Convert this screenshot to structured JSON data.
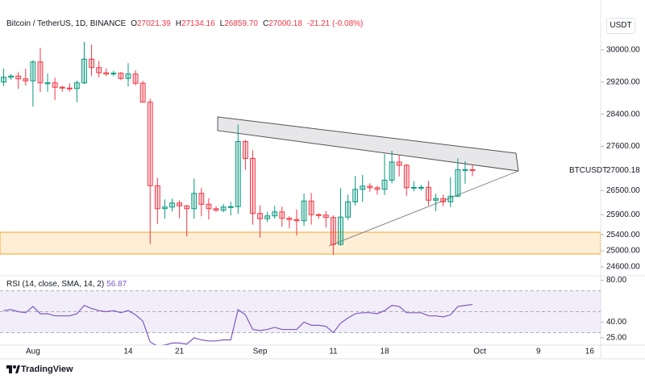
{
  "chart_data": {
    "type": "candlestick",
    "title": "Bitcoin / TetherUS, 1D, BINANCE",
    "currency": "USDT",
    "symbol": "BTCUSDT",
    "ohlc_labels": [
      "O",
      "H",
      "L",
      "C"
    ],
    "last_value_labels": [
      "27021.39",
      "27134.16",
      "26859.70",
      "27000.18"
    ],
    "change": "-21.21 (-0.08%)",
    "up_color": "#089981",
    "down_color": "#f23645",
    "grid": false,
    "categories": [
      null,
      null,
      null,
      null,
      "Aug",
      null,
      null,
      null,
      null,
      null,
      null,
      null,
      null,
      null,
      null,
      null,
      null,
      "14",
      null,
      null,
      null,
      null,
      null,
      null,
      "21",
      null,
      null,
      null,
      null,
      null,
      null,
      null,
      null,
      null,
      null,
      "Sep",
      null,
      null,
      null,
      null,
      null,
      null,
      null,
      null,
      null,
      "11",
      null,
      null,
      null,
      null,
      null,
      null,
      "18",
      null,
      null,
      null,
      null,
      null,
      null,
      null,
      null,
      null,
      null,
      null,
      null,
      "Oct",
      null,
      null,
      null,
      null,
      null,
      null,
      null,
      "9",
      null,
      null,
      null,
      null,
      null,
      null,
      "16",
      null
    ],
    "open": [
      29200,
      29320,
      29350,
      29280,
      29230,
      29700,
      29180,
      29180,
      29070,
      29050,
      29040,
      29180,
      29770,
      29560,
      29430,
      29400,
      29420,
      29290,
      29400,
      29170,
      28700,
      26620,
      26050,
      26090,
      26190,
      26120,
      26050,
      26430,
      26160,
      26050,
      26010,
      26090,
      26100,
      27720,
      27300,
      25930,
      25800,
      25870,
      25970,
      25810,
      25780,
      25750,
      26240,
      25900,
      25890,
      25830,
      25160,
      25840,
      26220,
      26530,
      26610,
      26570,
      26530,
      26760,
      27210,
      27130,
      26570,
      26580,
      26580,
      26260,
      26300,
      26220,
      26360,
      27020,
      27021.39,
      null,
      null,
      null,
      null,
      null,
      null,
      null,
      null,
      null,
      null,
      null,
      null,
      null,
      null,
      null,
      null,
      null
    ],
    "high": [
      29530,
      29400,
      29450,
      29530,
      29740,
      30050,
      29410,
      29310,
      29110,
      29170,
      29240,
      30200,
      30130,
      29720,
      29540,
      29480,
      29450,
      29670,
      29490,
      29230,
      28780,
      26820,
      26280,
      26300,
      26260,
      26140,
      26800,
      26570,
      26310,
      26110,
      26170,
      26220,
      28140,
      27760,
      27500,
      26130,
      25970,
      26120,
      26100,
      25860,
      26030,
      26430,
      26440,
      25940,
      25990,
      25880,
      26560,
      26400,
      26860,
      26890,
      26680,
      26620,
      27410,
      27490,
      27380,
      27160,
      26740,
      26640,
      26740,
      26420,
      26400,
      26830,
      27300,
      27230,
      27134.16,
      null,
      null,
      null,
      null,
      null,
      null,
      null,
      null,
      null,
      null,
      null,
      null,
      null,
      null,
      null,
      null,
      null
    ],
    "low": [
      29100,
      29260,
      29030,
      29110,
      28590,
      28950,
      28960,
      28750,
      28960,
      28960,
      28700,
      29150,
      29350,
      29320,
      29350,
      29350,
      29250,
      29090,
      29120,
      28700,
      25170,
      25670,
      25800,
      25980,
      25810,
      25360,
      25800,
      25860,
      25780,
      25970,
      25960,
      25880,
      25920,
      27020,
      25650,
      25330,
      25720,
      25800,
      25600,
      25560,
      25380,
      25620,
      25650,
      25800,
      25580,
      24900,
      25130,
      25770,
      26130,
      26220,
      26470,
      26400,
      26390,
      26680,
      26850,
      26370,
      26480,
      26500,
      26130,
      25990,
      26110,
      26090,
      26340,
      26670,
      26859.7,
      null,
      null,
      null,
      null,
      null,
      null,
      null,
      null,
      null,
      null,
      null,
      null,
      null,
      null,
      null,
      null,
      null
    ],
    "close": [
      29320,
      29350,
      29280,
      29230,
      29700,
      29180,
      29180,
      29070,
      29050,
      29040,
      29180,
      29770,
      29560,
      29430,
      29400,
      29420,
      29290,
      29400,
      29170,
      28700,
      26620,
      26050,
      26090,
      26190,
      26120,
      26050,
      26430,
      26160,
      26050,
      26010,
      26090,
      26100,
      27720,
      27300,
      25930,
      25800,
      25870,
      25970,
      25810,
      25780,
      25750,
      26240,
      25900,
      25890,
      25830,
      25160,
      25840,
      26220,
      26530,
      26610,
      26570,
      26530,
      26760,
      27210,
      27130,
      26570,
      26580,
      26580,
      26260,
      26300,
      26220,
      26360,
      27020,
      27021.39,
      27000.18,
      null,
      null,
      null,
      null,
      null,
      null,
      null,
      null,
      null,
      null,
      null,
      null,
      null,
      null,
      null,
      null,
      null
    ],
    "ylim": [
      24420,
      30840
    ],
    "yticks": [
      {
        "value": 30000,
        "label": "30000.00"
      },
      {
        "value": 29200,
        "label": "29200.00"
      },
      {
        "value": 28400,
        "label": "28400.00"
      },
      {
        "value": 27600,
        "label": "27600.00"
      },
      {
        "value": 26500,
        "label": "26500.00"
      },
      {
        "value": 25900,
        "label": "25900.00"
      },
      {
        "value": 25400,
        "label": "25400.00"
      },
      {
        "value": 25000,
        "label": "25000.00"
      },
      {
        "value": 24600,
        "label": "24600.00"
      }
    ],
    "indicator": {
      "type": "line",
      "title": "RSI (14, close, SMA, 14, 2)",
      "color": "#7e57c2",
      "values": [
        51,
        52,
        50,
        49,
        55,
        48,
        48,
        46,
        46,
        46,
        48,
        56,
        53,
        51,
        50,
        51,
        49,
        51,
        47,
        41,
        21,
        17,
        18,
        20,
        20,
        19,
        25,
        23,
        22,
        22,
        23,
        23,
        52,
        47,
        33,
        32,
        33,
        35,
        33,
        33,
        33,
        40,
        37,
        37,
        36,
        30,
        39,
        44,
        48,
        49,
        49,
        48,
        51,
        56,
        55,
        49,
        49,
        49,
        46,
        46,
        45,
        47,
        55,
        56,
        56.87,
        null,
        null,
        null,
        null,
        null,
        null,
        null,
        null,
        null,
        null,
        null,
        null,
        null,
        null,
        null,
        null,
        null
      ],
      "levels": [
        70,
        50,
        30
      ],
      "ylim": [
        18,
        82
      ],
      "yticks": [
        {
          "value": 80,
          "label": "80.00"
        },
        {
          "value": 40,
          "label": "40.00"
        },
        {
          "value": 25,
          "label": "25.00"
        }
      ]
    }
  },
  "brand": "TradingView"
}
